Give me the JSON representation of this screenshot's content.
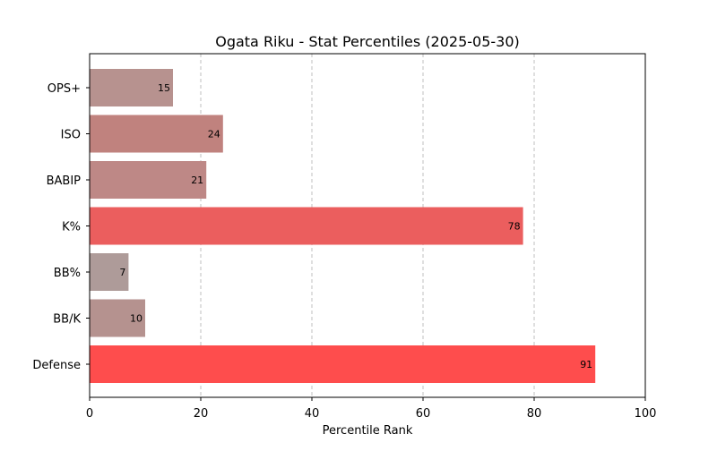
{
  "chart_data": {
    "type": "bar",
    "orientation": "horizontal",
    "title": "Ogata Riku - Stat Percentiles (2025-05-30)",
    "xlabel": "Percentile Rank",
    "ylabel": "",
    "xlim": [
      0,
      100
    ],
    "x_ticks": [
      0,
      20,
      40,
      60,
      80,
      100
    ],
    "grid": "x-axis dashed",
    "categories": [
      "OPS+",
      "ISO",
      "BABIP",
      "K%",
      "BB%",
      "BB/K",
      "Defense"
    ],
    "values": [
      15,
      24,
      21,
      78,
      7,
      10,
      91
    ],
    "colors": [
      "#b7928f",
      "#c0827e",
      "#be8886",
      "#eb5e5e",
      "#ae9b99",
      "#b5928f",
      "#fe4d4d"
    ]
  }
}
